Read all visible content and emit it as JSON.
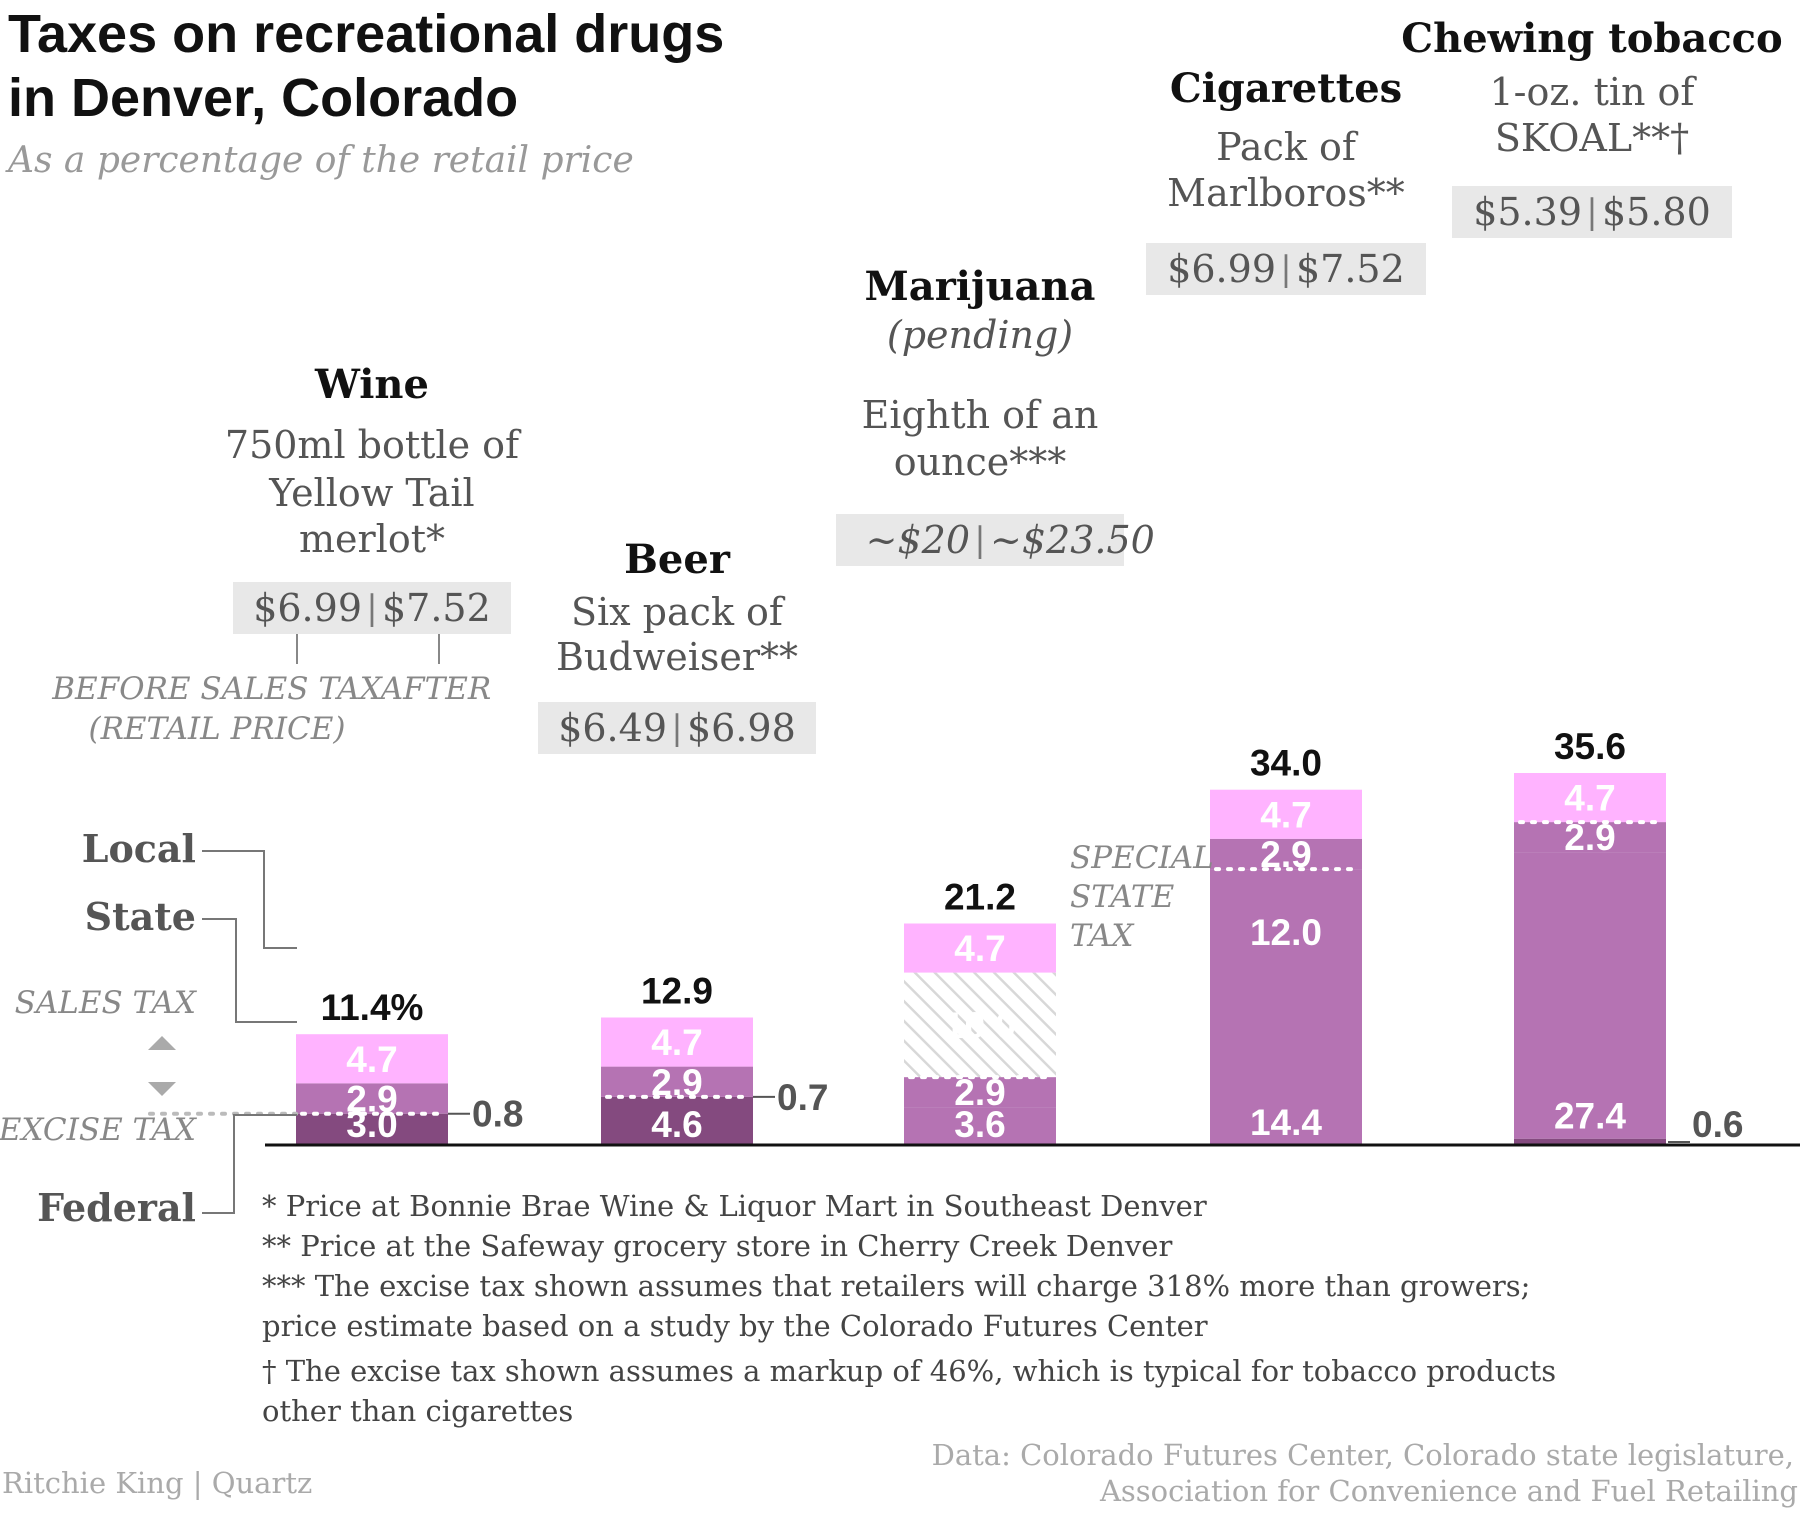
{
  "title_lines": [
    "Taxes on recreational drugs",
    "in Denver, Colorado"
  ],
  "subtitle": "As a percentage of the retail price",
  "colors": {
    "local": "#ffb3ff",
    "state": "#b573b3",
    "federal": "#844a7f",
    "special_hatch": "#d8d8d8",
    "price_box": "#e8e8e8",
    "text_dark": "#111111",
    "text_gray": "#777777",
    "text_muted": "#999999"
  },
  "legend": {
    "local": "Local",
    "state": "State",
    "sales_tax": "SALES TAX",
    "excise_tax": "EXCISE TAX",
    "federal": "Federal",
    "before_sales_tax_lines": [
      "BEFORE SALES TAX",
      "(RETAIL PRICE)"
    ],
    "after": "AFTER",
    "special_state_tax_lines": [
      "SPECIAL",
      "STATE",
      "TAX"
    ]
  },
  "chart_data": {
    "type": "bar",
    "stacked": true,
    "unit": "% of retail price",
    "categories": [
      "Wine",
      "Beer",
      "Marijuana",
      "Cigarettes",
      "Chewing tobacco"
    ],
    "ylim": [
      0,
      35.6
    ],
    "series": [
      {
        "name": "Federal",
        "values": [
          0,
          0,
          0,
          0,
          0.6
        ]
      },
      {
        "name": "State",
        "values": [
          3.0,
          4.6,
          3.6,
          14.4,
          27.4
        ]
      },
      {
        "name": "State",
        "values": [
          0,
          0,
          2.9,
          12.0,
          2.9
        ]
      },
      {
        "name": "State",
        "values": [
          2.9,
          2.9,
          0,
          2.9,
          0
        ]
      },
      {
        "name": "SPECIAL STATE TAX",
        "values": [
          0,
          0,
          10.0,
          0,
          0
        ]
      },
      {
        "name": "Local",
        "values": [
          4.7,
          4.7,
          4.7,
          4.7,
          4.7
        ]
      }
    ],
    "totals": [
      "11.4%",
      "12.9",
      "21.2",
      "34.0",
      "35.6"
    ],
    "outside_labels": [
      "0.8",
      "0.7",
      "",
      "",
      "0.6"
    ],
    "products": [
      {
        "name": "Wine",
        "desc_lines": [
          "750ml bottle of",
          "Yellow Tail",
          "merlot*"
        ],
        "price_before": "$6.99",
        "price_after": "$7.52"
      },
      {
        "name": "Beer",
        "desc_lines": [
          "Six pack of",
          "Budweiser**"
        ],
        "price_before": "$6.49",
        "price_after": "$6.98"
      },
      {
        "name": "Marijuana",
        "pending": "(pending)",
        "desc_lines": [
          "Eighth of an",
          "ounce***"
        ],
        "price_before": "~$20",
        "price_after": "~$23.50"
      },
      {
        "name": "Cigarettes",
        "desc_lines": [
          "Pack of",
          "Marlboros**"
        ],
        "price_before": "$6.99",
        "price_after": "$7.52"
      },
      {
        "name": "Chewing tobacco",
        "desc_lines": [
          "1-oz. tin of",
          "SKOAL**†"
        ],
        "price_before": "$5.39",
        "price_after": "$5.80"
      }
    ],
    "grid": false
  },
  "price_separator": "|",
  "footnotes": [
    "* Price at Bonnie Brae Wine & Liquor Mart in Southeast Denver",
    "** Price at the Safeway grocery store in Cherry Creek Denver",
    "*** The excise tax shown assumes that retailers will charge 318% more than growers;",
    "price estimate based on a study by the Colorado Futures Center",
    "† The excise tax shown assumes a markup of 46%, which is typical for tobacco products",
    "other than cigarettes"
  ],
  "credit": "Ritchie King | Quartz",
  "source_lines": [
    "Data: Colorado Futures Center, Colorado state legislature,",
    "Association for Convenience and Fuel Retailing"
  ]
}
